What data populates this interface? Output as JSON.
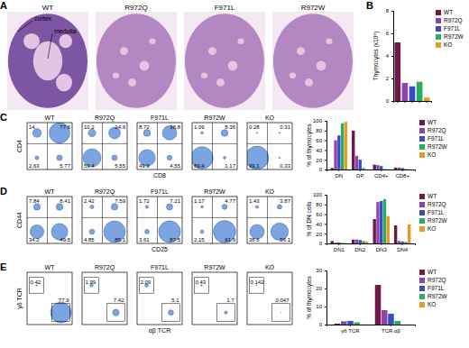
{
  "chart_data": [
    {
      "type": "image",
      "label": "A",
      "titles": [
        "WT",
        "R972Q",
        "F971L",
        "R972W"
      ],
      "annotations": [
        "cortex",
        "medulla"
      ]
    },
    {
      "type": "bar",
      "label": "B",
      "y_label": "Thymocytes (x10⁸)",
      "categories": [
        "WT",
        "R972Q",
        "F971L",
        "R972W",
        "KO"
      ],
      "values": [
        5.2,
        1.6,
        1.3,
        1.7,
        0.3
      ],
      "colors": [
        "#6d1a4a",
        "#8e44ad",
        "#3b4cc0",
        "#27ae60",
        "#e69b22"
      ],
      "ylim": [
        0,
        8
      ],
      "yticks": [
        0,
        2,
        4,
        6,
        8
      ],
      "legend": "right",
      "tick_labels": "y"
    },
    {
      "type": "flow",
      "label": "C",
      "x_label": "CD8",
      "y_label": "CD4",
      "size_lim": [
        0,
        100
      ],
      "plots": [
        {
          "title": "WT",
          "quadrants": [
            14,
            77.6,
            2.63,
            5.77
          ]
        },
        {
          "title": "R972Q",
          "quadrants": [
            10.2,
            24.9,
            59.4,
            5.55
          ]
        },
        {
          "title": "F971L",
          "quadrants": [
            8.72,
            36.8,
            49.9,
            4.55
          ]
        },
        {
          "title": "R972W",
          "quadrants": [
            1.09,
            8.36,
            89.4,
            1.17
          ]
        },
        {
          "title": "KO",
          "quadrants": [
            0.28,
            0.31,
            99.1,
            0.33
          ]
        }
      ]
    },
    {
      "type": "bar",
      "label": "",
      "y_label": "% of thymocytes",
      "categories": [
        "DN",
        "DP",
        "CD4+",
        "CD8+"
      ],
      "ylim": [
        0,
        100
      ],
      "yticks": [
        0,
        20,
        40,
        60,
        80,
        100
      ],
      "legend": "right",
      "series": [
        {
          "name": "WT",
          "color": "#6d1a4a",
          "values": [
            3,
            80,
            10,
            4
          ]
        },
        {
          "name": "R972Q",
          "color": "#8e44ad",
          "values": [
            60,
            28,
            9,
            4
          ]
        },
        {
          "name": "F971L",
          "color": "#3b4cc0",
          "values": [
            70,
            20,
            7,
            3
          ]
        },
        {
          "name": "R972W",
          "color": "#27ae60",
          "values": [
            95,
            3,
            1,
            1
          ]
        },
        {
          "name": "KO",
          "color": "#e69b22",
          "values": [
            98,
            0.5,
            0.3,
            0.5
          ]
        }
      ]
    },
    {
      "type": "flow",
      "label": "D",
      "x_label": "CD25",
      "y_label": "CD44",
      "size_lim": [
        0,
        100
      ],
      "plots": [
        {
          "title": "WT",
          "quadrants": [
            7.84,
            8.41,
            34.2,
            49.5
          ]
        },
        {
          "title": "R972Q",
          "quadrants": [
            2.42,
            7.59,
            4.85,
            85.1
          ]
        },
        {
          "title": "F971L",
          "quadrants": [
            1.72,
            7.21,
            3.61,
            87.5
          ]
        },
        {
          "title": "R972W",
          "quadrants": [
            1.17,
            4.77,
            2.15,
            91.9
          ]
        },
        {
          "title": "KO",
          "quadrants": [
            1.43,
            3.87,
            38.6,
            56.1
          ]
        }
      ]
    },
    {
      "type": "bar",
      "y_label": "% of DN cells",
      "categories": [
        "DN1",
        "DN2",
        "DN3",
        "DN4"
      ],
      "ylim": [
        0,
        100
      ],
      "yticks": [
        0,
        20,
        40,
        60,
        80,
        100
      ],
      "legend": "right",
      "series": [
        {
          "name": "WT",
          "color": "#6d1a4a",
          "values": [
            5,
            8,
            50,
            37
          ]
        },
        {
          "name": "R972Q",
          "color": "#8e44ad",
          "values": [
            2,
            8,
            85,
            5
          ]
        },
        {
          "name": "F971L",
          "color": "#3b4cc0",
          "values": [
            2,
            7,
            87,
            4
          ]
        },
        {
          "name": "R972W",
          "color": "#27ae60",
          "values": [
            1,
            5,
            91,
            3
          ]
        },
        {
          "name": "KO",
          "color": "#e69b22",
          "values": [
            1,
            4,
            56,
            39
          ]
        }
      ]
    },
    {
      "type": "gate",
      "label": "E",
      "x_label": "αβ TCR",
      "y_label": "γδ TCR",
      "size_lim": [
        0,
        100
      ],
      "plots": [
        {
          "title": "WT",
          "gates": [
            0.42,
            77.9
          ]
        },
        {
          "title": "R972Q",
          "gates": [
            1.99,
            7.42
          ]
        },
        {
          "title": "F971L",
          "gates": [
            2.09,
            5.1
          ]
        },
        {
          "title": "R972W",
          "gates": [
            0.43,
            1.7
          ]
        },
        {
          "title": "KO",
          "gates": [
            0.142,
            0.047
          ]
        }
      ]
    },
    {
      "type": "bar",
      "y_label": "% of thymocytes",
      "categories": [
        "γδ TCR",
        "TCR αβ"
      ],
      "ylim": [
        0,
        30
      ],
      "yticks": [
        0,
        10,
        20,
        30
      ],
      "legend": "right",
      "series": [
        {
          "name": "WT",
          "color": "#6d1a4a",
          "values": [
            0.5,
            22
          ]
        },
        {
          "name": "R972Q",
          "color": "#8e44ad",
          "values": [
            1.8,
            8
          ]
        },
        {
          "name": "F971L",
          "color": "#3b4cc0",
          "values": [
            2,
            6
          ]
        },
        {
          "name": "R972W",
          "color": "#27ae60",
          "values": [
            1.2,
            2
          ]
        },
        {
          "name": "KO",
          "color": "#e69b22",
          "values": [
            0.1,
            0.05
          ]
        }
      ]
    }
  ]
}
